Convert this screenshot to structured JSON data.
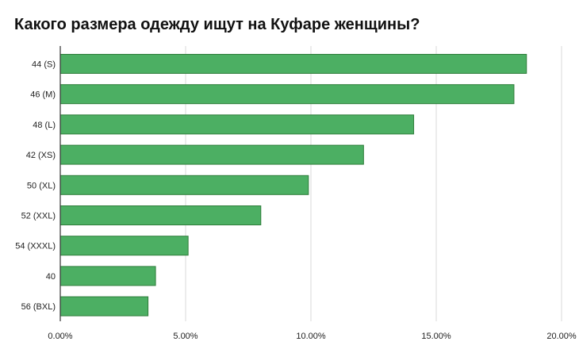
{
  "chart_data": {
    "type": "bar",
    "orientation": "horizontal",
    "title": "Какого размера одежду ищут на Куфаре женщины?",
    "categories": [
      "44 (S)",
      "46 (M)",
      "48 (L)",
      "42 (XS)",
      "50 (XL)",
      "52 (XXL)",
      "54 (XXXL)",
      "40",
      "56 (BXL)"
    ],
    "values": [
      18.6,
      18.1,
      14.1,
      12.1,
      9.9,
      8.0,
      5.1,
      3.8,
      3.5
    ],
    "x_ticks": [
      "0.00%",
      "5.00%",
      "10.00%",
      "15.00%",
      "20.00%"
    ],
    "x_tick_values": [
      0,
      5,
      10,
      15,
      20
    ],
    "xlim": [
      0,
      20
    ],
    "xlabel": "",
    "ylabel": "",
    "grid": "vertical",
    "legend": "none",
    "colors": {
      "bar_fill": "#4caf63",
      "bar_stroke": "#2e7d3a",
      "grid": "#d9d9d9",
      "axis": "#333333"
    }
  }
}
